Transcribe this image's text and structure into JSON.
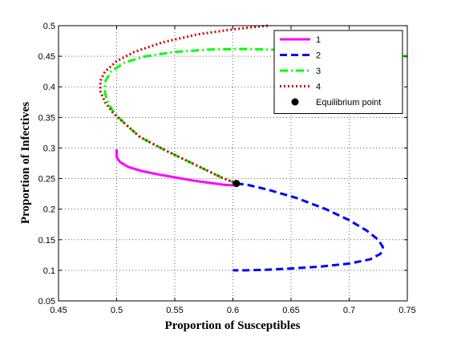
{
  "chart_data": {
    "type": "line",
    "title": "",
    "xlabel": "Proportion of Susceptibles",
    "ylabel": "Proportion of Infectives",
    "xlim": [
      0.45,
      0.75
    ],
    "ylim": [
      0.05,
      0.5
    ],
    "x_ticks": [
      "0.45",
      "0.5",
      "0.55",
      "0.6",
      "0.65",
      "0.7",
      "0.75"
    ],
    "y_ticks": [
      "0.05",
      "0.1",
      "0.15",
      "0.2",
      "0.25",
      "0.3",
      "0.35",
      "0.4",
      "0.45",
      "0.5"
    ],
    "grid": true,
    "legend_position": "top-right",
    "series": [
      {
        "name": "1",
        "color": "#ff00ff",
        "style": "solid",
        "x": [
          0.5,
          0.5,
          0.503,
          0.51,
          0.52,
          0.535,
          0.55,
          0.565,
          0.58,
          0.592,
          0.598,
          0.601,
          0.603
        ],
        "y": [
          0.298,
          0.285,
          0.277,
          0.269,
          0.263,
          0.257,
          0.252,
          0.247,
          0.243,
          0.24,
          0.239,
          0.24,
          0.242
        ]
      },
      {
        "name": "2",
        "color": "#0000ff",
        "style": "dashed",
        "x": [
          0.603,
          0.612,
          0.63,
          0.655,
          0.68,
          0.7,
          0.715,
          0.725,
          0.729,
          0.727,
          0.718,
          0.7,
          0.675,
          0.65,
          0.63,
          0.612,
          0.6
        ],
        "y": [
          0.242,
          0.24,
          0.232,
          0.218,
          0.2,
          0.182,
          0.165,
          0.15,
          0.138,
          0.127,
          0.118,
          0.111,
          0.106,
          0.103,
          0.101,
          0.1,
          0.1
        ]
      },
      {
        "name": "3",
        "color": "#00ff00",
        "style": "dashdot",
        "x": [
          0.75,
          0.7,
          0.65,
          0.61,
          0.58,
          0.55,
          0.525,
          0.507,
          0.495,
          0.49,
          0.49,
          0.493,
          0.498,
          0.507,
          0.52,
          0.54,
          0.565,
          0.59,
          0.603
        ],
        "y": [
          0.45,
          0.455,
          0.46,
          0.462,
          0.461,
          0.457,
          0.45,
          0.44,
          0.425,
          0.408,
          0.39,
          0.372,
          0.357,
          0.34,
          0.318,
          0.298,
          0.275,
          0.252,
          0.242
        ]
      },
      {
        "name": "4",
        "color": "#cc0000",
        "style": "dotted",
        "x": [
          0.63,
          0.6,
          0.57,
          0.54,
          0.515,
          0.5,
          0.49,
          0.486,
          0.486,
          0.49,
          0.497,
          0.507,
          0.52,
          0.54,
          0.565,
          0.59,
          0.603
        ],
        "y": [
          0.5,
          0.494,
          0.486,
          0.473,
          0.457,
          0.442,
          0.425,
          0.41,
          0.393,
          0.375,
          0.357,
          0.34,
          0.318,
          0.298,
          0.275,
          0.252,
          0.242
        ]
      }
    ],
    "annotations": [
      {
        "name": "Equilibrium point",
        "x": 0.603,
        "y": 0.242,
        "color": "#000000"
      }
    ]
  }
}
